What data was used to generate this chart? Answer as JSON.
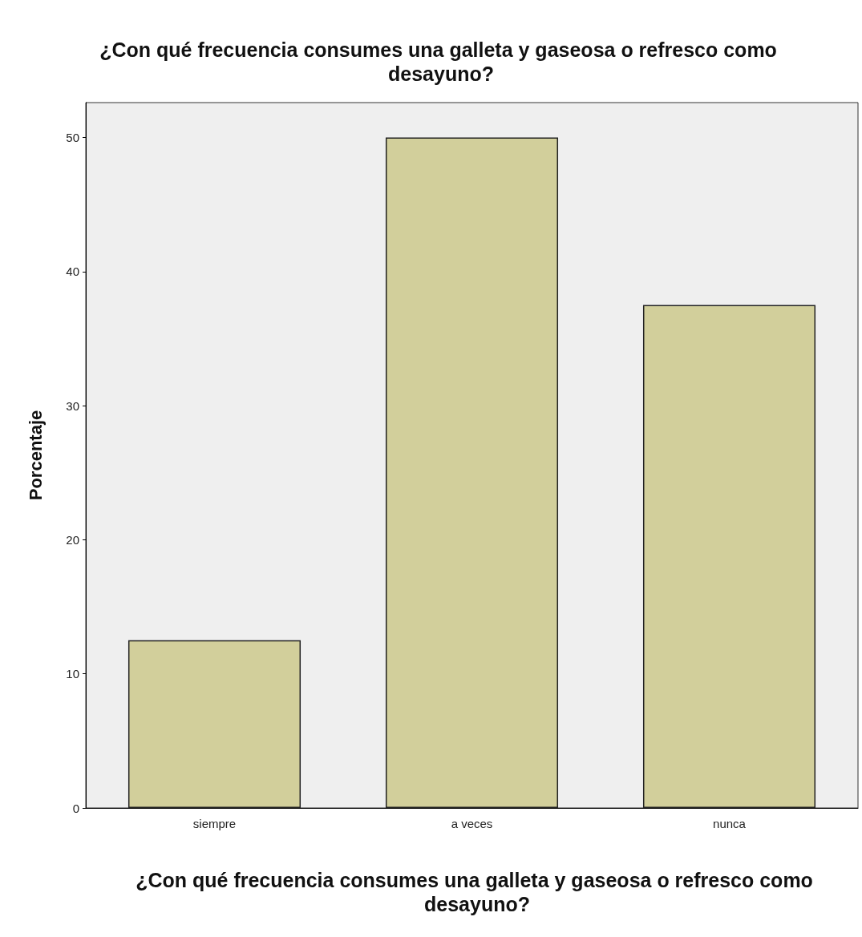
{
  "chart_data": {
    "type": "bar",
    "title": "¿Con qué frecuencia consumes una galleta y gaseosa o refresco como desayuno?",
    "xlabel": "¿Con qué frecuencia consumes una galleta y gaseosa o refresco como desayuno?",
    "ylabel": "Porcentaje",
    "categories": [
      "siempre",
      "a veces",
      "nunca"
    ],
    "values": [
      12.5,
      50,
      37.5
    ],
    "color": "#d2cf9b",
    "ylim": [
      0,
      52.6
    ],
    "yticks": [
      0,
      10,
      20,
      30,
      40,
      50
    ],
    "grid": false
  }
}
